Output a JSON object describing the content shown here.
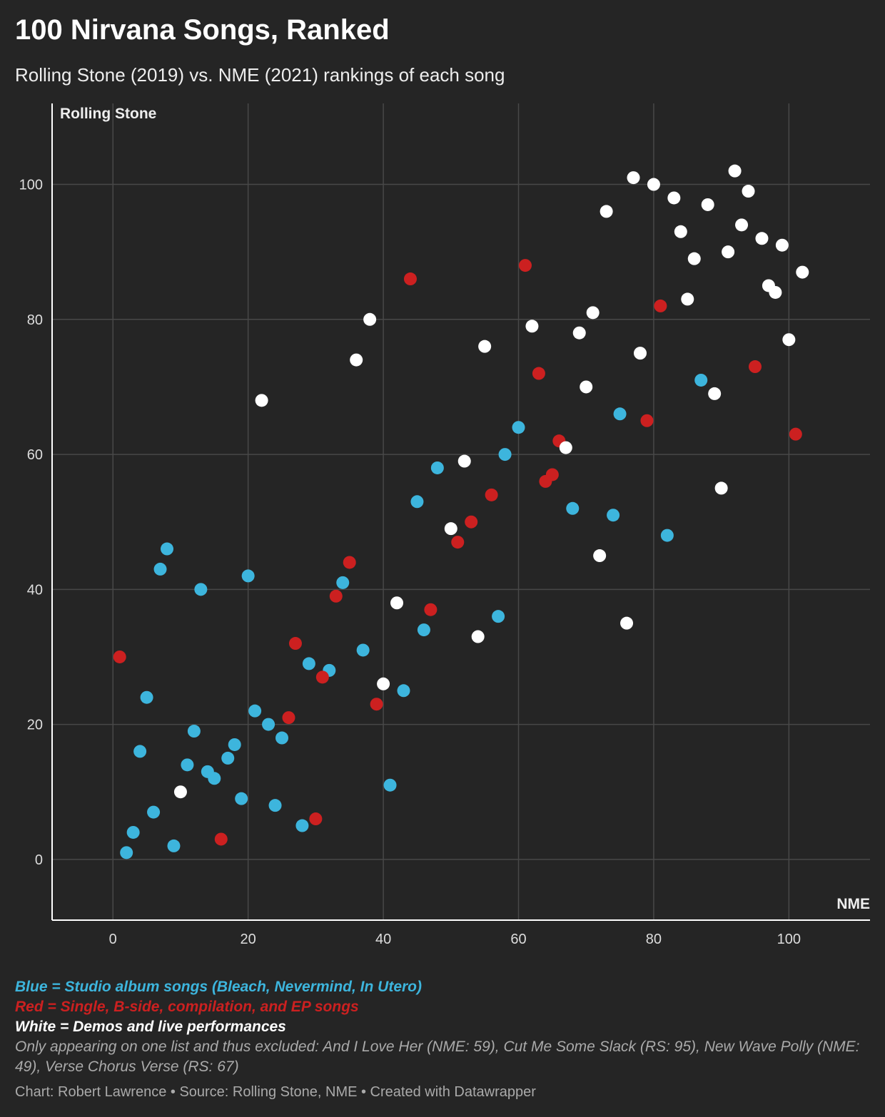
{
  "header": {
    "title": "100 Nirvana Songs, Ranked",
    "subtitle": "Rolling Stone (2019) vs. NME (2021) rankings of each song"
  },
  "notes": {
    "blue": "Blue = Studio album songs (Bleach, Nevermind, In Utero)",
    "red": "Red = Single, B-side, compilation, and EP songs",
    "white": "White = Demos and live performances",
    "excluded": "Only appearing on one list and thus excluded: And I Love Her (NME: 59), Cut Me Some Slack (RS: 95), New Wave Polly (NME: 49), Verse Chorus Verse (RS: 67)"
  },
  "credit": "Chart: Robert Lawrence • Source: Rolling Stone, NME • Created with Datawrapper",
  "chart_data": {
    "type": "scatter",
    "xlabel": "NME",
    "ylabel": "Rolling Stone",
    "xlim": [
      -9,
      112
    ],
    "ylim": [
      -9,
      112
    ],
    "xticks": [
      "0",
      "20",
      "40",
      "60",
      "80",
      "100"
    ],
    "yticks": [
      "0",
      "20",
      "40",
      "60",
      "80",
      "100"
    ],
    "grid": true,
    "series": [
      {
        "name": "Studio album songs",
        "color": "#3db5dd",
        "points": [
          [
            2,
            1
          ],
          [
            3,
            4
          ],
          [
            4,
            16
          ],
          [
            5,
            24
          ],
          [
            6,
            7
          ],
          [
            7,
            43
          ],
          [
            8,
            46
          ],
          [
            9,
            2
          ],
          [
            11,
            14
          ],
          [
            12,
            19
          ],
          [
            13,
            40
          ],
          [
            14,
            13
          ],
          [
            15,
            12
          ],
          [
            17,
            15
          ],
          [
            18,
            17
          ],
          [
            19,
            9
          ],
          [
            20,
            42
          ],
          [
            21,
            22
          ],
          [
            23,
            20
          ],
          [
            24,
            8
          ],
          [
            25,
            18
          ],
          [
            28,
            5
          ],
          [
            29,
            29
          ],
          [
            32,
            28
          ],
          [
            34,
            41
          ],
          [
            37,
            31
          ],
          [
            41,
            11
          ],
          [
            43,
            25
          ],
          [
            45,
            53
          ],
          [
            46,
            34
          ],
          [
            48,
            58
          ],
          [
            57,
            36
          ],
          [
            58,
            60
          ],
          [
            60,
            64
          ],
          [
            68,
            52
          ],
          [
            74,
            51
          ],
          [
            75,
            66
          ],
          [
            82,
            48
          ],
          [
            87,
            71
          ]
        ]
      },
      {
        "name": "Single, B-side, compilation, and EP songs",
        "color": "#cc2020",
        "points": [
          [
            1,
            30
          ],
          [
            16,
            3
          ],
          [
            26,
            21
          ],
          [
            27,
            32
          ],
          [
            30,
            6
          ],
          [
            31,
            27
          ],
          [
            33,
            39
          ],
          [
            35,
            44
          ],
          [
            39,
            23
          ],
          [
            44,
            86
          ],
          [
            47,
            37
          ],
          [
            51,
            47
          ],
          [
            53,
            50
          ],
          [
            56,
            54
          ],
          [
            61,
            88
          ],
          [
            63,
            72
          ],
          [
            64,
            56
          ],
          [
            65,
            57
          ],
          [
            66,
            62
          ],
          [
            79,
            65
          ],
          [
            81,
            82
          ],
          [
            95,
            73
          ],
          [
            101,
            63
          ]
        ]
      },
      {
        "name": "Demos and live performances",
        "color": "#ffffff",
        "points": [
          [
            10,
            10
          ],
          [
            22,
            68
          ],
          [
            36,
            74
          ],
          [
            38,
            80
          ],
          [
            40,
            26
          ],
          [
            42,
            38
          ],
          [
            50,
            49
          ],
          [
            52,
            59
          ],
          [
            54,
            33
          ],
          [
            55,
            76
          ],
          [
            62,
            79
          ],
          [
            67,
            61
          ],
          [
            69,
            78
          ],
          [
            70,
            70
          ],
          [
            71,
            81
          ],
          [
            72,
            45
          ],
          [
            73,
            96
          ],
          [
            76,
            35
          ],
          [
            77,
            101
          ],
          [
            78,
            75
          ],
          [
            80,
            100
          ],
          [
            83,
            98
          ],
          [
            84,
            93
          ],
          [
            85,
            83
          ],
          [
            86,
            89
          ],
          [
            88,
            97
          ],
          [
            89,
            69
          ],
          [
            90,
            55
          ],
          [
            91,
            90
          ],
          [
            92,
            102
          ],
          [
            93,
            94
          ],
          [
            94,
            99
          ],
          [
            96,
            92
          ],
          [
            97,
            85
          ],
          [
            98,
            84
          ],
          [
            99,
            91
          ],
          [
            100,
            77
          ],
          [
            102,
            87
          ]
        ]
      }
    ]
  }
}
